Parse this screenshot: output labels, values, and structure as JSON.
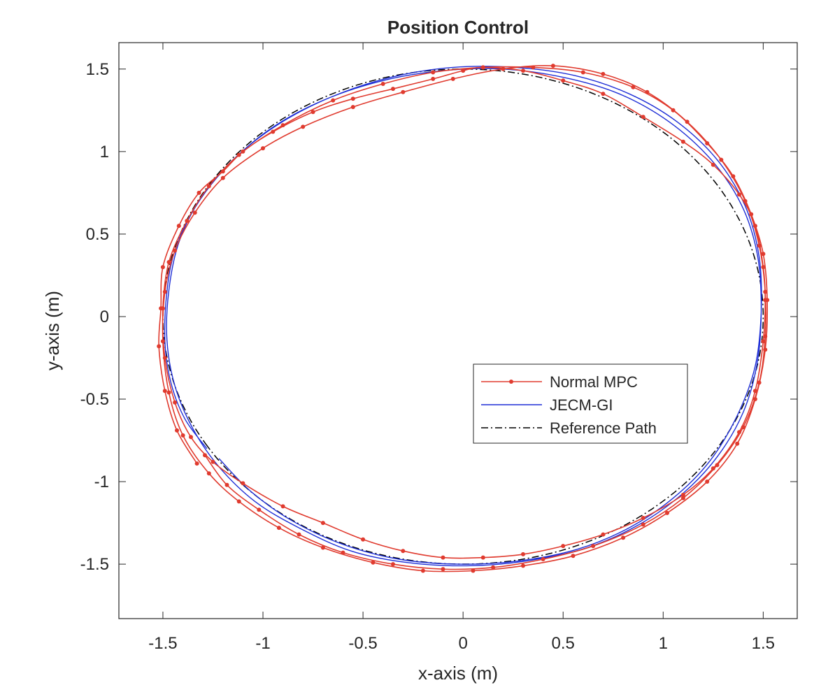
{
  "chart_data": {
    "type": "line",
    "title": "Position Control",
    "xlabel": "x-axis (m)",
    "ylabel": "y-axis (m)",
    "xlim": [
      -1.72,
      1.67
    ],
    "ylim": [
      -1.83,
      1.66
    ],
    "xticks": [
      -1.5,
      -1,
      -0.5,
      0,
      0.5,
      1,
      1.5
    ],
    "xtick_labels": [
      "-1.5",
      "-1",
      "-0.5",
      "0",
      "0.5",
      "1",
      "1.5"
    ],
    "yticks": [
      -1.5,
      -1,
      -0.5,
      0,
      0.5,
      1,
      1.5
    ],
    "ytick_labels": [
      "-1.5",
      "-1",
      "-0.5",
      "0",
      "0.5",
      "1",
      "1.5"
    ],
    "grid": false,
    "legend_position": "center-right",
    "series": [
      {
        "name": "Normal MPC",
        "color": "#e03b2f",
        "marker": "dot",
        "points": [
          [
            -1.33,
            -0.89
          ],
          [
            -1.43,
            -0.69
          ],
          [
            -1.49,
            -0.45
          ],
          [
            -1.52,
            -0.18
          ],
          [
            -1.51,
            0.05
          ],
          [
            -1.5,
            0.3
          ],
          [
            -1.42,
            0.55
          ],
          [
            -1.32,
            0.75
          ],
          [
            -1.2,
            0.88
          ],
          [
            -1.1,
            1.0
          ],
          [
            -0.95,
            1.12
          ],
          [
            -0.75,
            1.24
          ],
          [
            -0.55,
            1.32
          ],
          [
            -0.35,
            1.38
          ],
          [
            -0.15,
            1.44
          ],
          [
            0.0,
            1.49
          ],
          [
            0.1,
            1.51
          ],
          [
            0.3,
            1.49
          ],
          [
            0.5,
            1.43
          ],
          [
            0.7,
            1.35
          ],
          [
            0.9,
            1.21
          ],
          [
            1.1,
            1.06
          ],
          [
            1.25,
            0.92
          ],
          [
            1.38,
            0.74
          ],
          [
            1.46,
            0.55
          ],
          [
            1.5,
            0.3
          ],
          [
            1.51,
            0.1
          ],
          [
            1.5,
            -0.15
          ],
          [
            1.46,
            -0.45
          ],
          [
            1.38,
            -0.7
          ],
          [
            1.25,
            -0.92
          ],
          [
            1.1,
            -1.08
          ],
          [
            0.9,
            -1.22
          ],
          [
            0.7,
            -1.32
          ],
          [
            0.5,
            -1.39
          ],
          [
            0.3,
            -1.44
          ],
          [
            0.1,
            -1.46
          ],
          [
            -0.1,
            -1.46
          ],
          [
            -0.3,
            -1.42
          ],
          [
            -0.5,
            -1.35
          ],
          [
            -0.7,
            -1.25
          ],
          [
            -0.9,
            -1.15
          ],
          [
            -1.1,
            -1.01
          ],
          [
            -1.25,
            -0.88
          ],
          [
            -1.36,
            -0.73
          ],
          [
            -1.44,
            -0.52
          ],
          [
            -1.49,
            -0.25
          ],
          [
            -1.5,
            0.05
          ],
          [
            -1.47,
            0.33
          ],
          [
            -1.38,
            0.58
          ],
          [
            -1.27,
            0.79
          ],
          [
            -1.12,
            0.98
          ],
          [
            -0.9,
            1.16
          ],
          [
            -0.65,
            1.31
          ],
          [
            -0.4,
            1.41
          ],
          [
            -0.15,
            1.48
          ],
          [
            0.1,
            1.51
          ],
          [
            0.35,
            1.51
          ],
          [
            0.6,
            1.48
          ],
          [
            0.85,
            1.39
          ],
          [
            1.05,
            1.25
          ],
          [
            1.22,
            1.05
          ],
          [
            1.35,
            0.85
          ],
          [
            1.44,
            0.62
          ],
          [
            1.5,
            0.38
          ],
          [
            1.52,
            0.1
          ],
          [
            1.51,
            -0.2
          ],
          [
            1.46,
            -0.5
          ],
          [
            1.37,
            -0.77
          ],
          [
            1.22,
            -1.0
          ],
          [
            1.02,
            -1.19
          ],
          [
            0.8,
            -1.34
          ],
          [
            0.55,
            -1.45
          ],
          [
            0.3,
            -1.51
          ],
          [
            0.05,
            -1.54
          ],
          [
            -0.2,
            -1.54
          ],
          [
            -0.45,
            -1.49
          ],
          [
            -0.7,
            -1.4
          ],
          [
            -0.92,
            -1.28
          ],
          [
            -1.12,
            -1.12
          ],
          [
            -1.27,
            -0.95
          ],
          [
            -1.4,
            -0.72
          ],
          [
            -1.47,
            -0.46
          ],
          [
            -1.5,
            -0.15
          ],
          [
            -1.49,
            0.15
          ],
          [
            -1.44,
            0.4
          ],
          [
            -1.34,
            0.63
          ],
          [
            -1.2,
            0.84
          ],
          [
            -1.0,
            1.02
          ],
          [
            -0.8,
            1.15
          ],
          [
            -0.55,
            1.27
          ],
          [
            -0.3,
            1.36
          ],
          [
            -0.05,
            1.44
          ],
          [
            0.2,
            1.5
          ],
          [
            0.45,
            1.52
          ],
          [
            0.7,
            1.47
          ],
          [
            0.92,
            1.36
          ],
          [
            1.12,
            1.18
          ],
          [
            1.29,
            0.95
          ],
          [
            1.41,
            0.7
          ],
          [
            1.48,
            0.43
          ],
          [
            1.51,
            0.15
          ],
          [
            1.51,
            -0.12
          ],
          [
            1.48,
            -0.4
          ],
          [
            1.4,
            -0.67
          ],
          [
            1.27,
            -0.9
          ],
          [
            1.1,
            -1.1
          ],
          [
            0.9,
            -1.26
          ],
          [
            0.65,
            -1.39
          ],
          [
            0.4,
            -1.47
          ],
          [
            0.15,
            -1.52
          ],
          [
            -0.1,
            -1.53
          ],
          [
            -0.35,
            -1.5
          ],
          [
            -0.6,
            -1.43
          ],
          [
            -0.82,
            -1.32
          ],
          [
            -1.02,
            -1.17
          ],
          [
            -1.18,
            -1.02
          ],
          [
            -1.29,
            -0.84
          ]
        ]
      },
      {
        "name": "JECM-GI",
        "color": "#1f2fd6",
        "marker": "none",
        "points": [
          [
            -1.28,
            -0.8
          ],
          [
            -1.39,
            -0.62
          ],
          [
            -1.46,
            -0.4
          ],
          [
            -1.49,
            -0.15
          ],
          [
            -1.48,
            0.15
          ],
          [
            -1.44,
            0.4
          ],
          [
            -1.34,
            0.66
          ],
          [
            -1.18,
            0.91
          ],
          [
            -0.96,
            1.14
          ],
          [
            -0.7,
            1.31
          ],
          [
            -0.4,
            1.43
          ],
          [
            -0.1,
            1.49
          ],
          [
            0.2,
            1.5
          ],
          [
            0.5,
            1.45
          ],
          [
            0.78,
            1.35
          ],
          [
            1.03,
            1.18
          ],
          [
            1.24,
            0.95
          ],
          [
            1.39,
            0.68
          ],
          [
            1.47,
            0.38
          ],
          [
            1.49,
            0.05
          ],
          [
            1.47,
            -0.28
          ],
          [
            1.4,
            -0.58
          ],
          [
            1.27,
            -0.85
          ],
          [
            1.1,
            -1.07
          ],
          [
            0.88,
            -1.26
          ],
          [
            0.62,
            -1.4
          ],
          [
            0.32,
            -1.48
          ],
          [
            0.02,
            -1.51
          ],
          [
            -0.28,
            -1.49
          ],
          [
            -0.56,
            -1.42
          ],
          [
            -0.82,
            -1.28
          ],
          [
            -1.04,
            -1.12
          ],
          [
            -1.22,
            -0.91
          ],
          [
            -1.35,
            -0.68
          ],
          [
            -1.44,
            -0.42
          ],
          [
            -1.48,
            -0.14
          ],
          [
            -1.47,
            0.16
          ],
          [
            -1.42,
            0.45
          ],
          [
            -1.31,
            0.72
          ],
          [
            -1.15,
            0.95
          ],
          [
            -0.93,
            1.16
          ],
          [
            -0.66,
            1.33
          ],
          [
            -0.36,
            1.45
          ],
          [
            -0.05,
            1.51
          ],
          [
            0.26,
            1.51
          ],
          [
            0.56,
            1.46
          ],
          [
            0.83,
            1.35
          ],
          [
            1.07,
            1.18
          ],
          [
            1.27,
            0.95
          ],
          [
            1.41,
            0.67
          ],
          [
            1.48,
            0.36
          ],
          [
            1.49,
            0.03
          ],
          [
            1.46,
            -0.3
          ],
          [
            1.37,
            -0.6
          ],
          [
            1.23,
            -0.88
          ],
          [
            1.05,
            -1.1
          ],
          [
            0.83,
            -1.28
          ],
          [
            0.57,
            -1.41
          ],
          [
            0.28,
            -1.48
          ],
          [
            -0.02,
            -1.5
          ],
          [
            -0.32,
            -1.47
          ],
          [
            -0.6,
            -1.38
          ],
          [
            -0.85,
            -1.24
          ],
          [
            -1.06,
            -1.06
          ],
          [
            -1.22,
            -0.86
          ]
        ]
      },
      {
        "name": "Reference Path",
        "color": "#000000",
        "marker": "none",
        "dash": "dashdot",
        "ellipse": {
          "cx": 0,
          "cy": 0,
          "rx": 1.5,
          "ry": 1.5,
          "start_deg": 211,
          "end_deg": 571
        }
      }
    ]
  }
}
